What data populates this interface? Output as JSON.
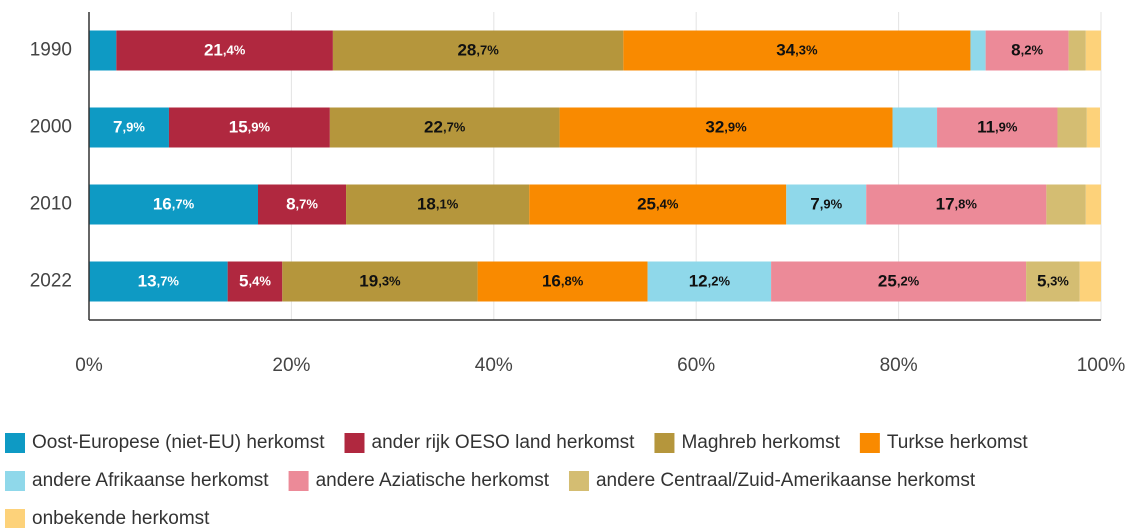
{
  "chart_data": {
    "type": "bar",
    "orientation": "horizontal",
    "stacked": true,
    "categories": [
      "1990",
      "2000",
      "2010",
      "2022"
    ],
    "series": [
      {
        "name": "Oost-Europese (niet-EU) herkomst",
        "color": "#0e9ac4",
        "values": [
          2.7,
          7.9,
          16.7,
          13.7
        ],
        "value_labels": [
          null,
          "7,9%",
          "16,7%",
          "13,7%"
        ]
      },
      {
        "name": "ander rijk OESO land herkomst",
        "color": "#b0283f",
        "values": [
          21.4,
          15.9,
          8.7,
          5.4
        ],
        "value_labels": [
          "21,4%",
          "15,9%",
          "8,7%",
          "5,4%"
        ]
      },
      {
        "name": "Maghreb herkomst",
        "color": "#b5963c",
        "values": [
          28.7,
          22.7,
          18.1,
          19.3
        ],
        "value_labels": [
          "28,7%",
          "22,7%",
          "18,1%",
          "19,3%"
        ]
      },
      {
        "name": "Turkse herkomst",
        "color": "#f98a00",
        "values": [
          34.3,
          32.9,
          25.4,
          16.8
        ],
        "value_labels": [
          "34,3%",
          "32,9%",
          "25,4%",
          "16,8%"
        ]
      },
      {
        "name": "andere Afrikaanse herkomst",
        "color": "#8fd8ea",
        "values": [
          1.5,
          4.4,
          7.9,
          12.2
        ],
        "value_labels": [
          null,
          null,
          "7,9%",
          "12,2%"
        ]
      },
      {
        "name": "andere Aziatische herkomst",
        "color": "#ec8a98",
        "values": [
          8.2,
          11.9,
          17.8,
          25.2
        ],
        "value_labels": [
          "8,2%",
          "11,9%",
          "17,8%",
          "25,2%"
        ]
      },
      {
        "name": "andere Centraal/Zuid-Amerikaanse herkomst",
        "color": "#d4bd72",
        "values": [
          1.7,
          2.9,
          3.9,
          5.3
        ],
        "value_labels": [
          null,
          null,
          null,
          "5,3%"
        ]
      },
      {
        "name": "onbekende herkomst",
        "color": "#fdd27a",
        "values": [
          1.5,
          1.3,
          1.5,
          2.1
        ],
        "value_labels": [
          null,
          null,
          null,
          null
        ]
      }
    ],
    "xlim": [
      0,
      100
    ],
    "xticks": [
      {
        "value": 0,
        "label": "0%"
      },
      {
        "value": 20,
        "label": "20%"
      },
      {
        "value": 40,
        "label": "40%"
      },
      {
        "value": 60,
        "label": "60%"
      },
      {
        "value": 80,
        "label": "80%"
      },
      {
        "value": 100,
        "label": "100%"
      }
    ],
    "grid": true,
    "legend": "bottom"
  }
}
